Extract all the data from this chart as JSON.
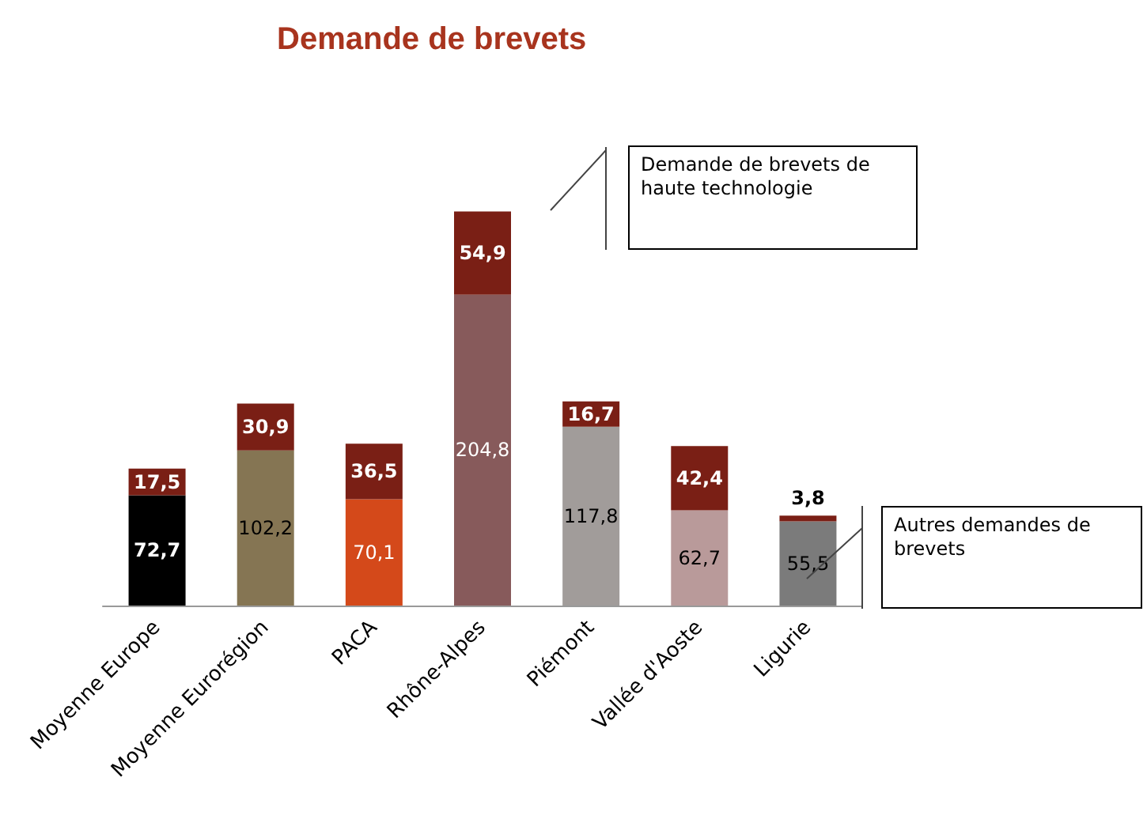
{
  "chart_data": {
    "type": "bar",
    "title": "Demande de brevets",
    "stacked": true,
    "categories": [
      "Moyenne Europe",
      "Moyenne Eurorégion",
      "PACA",
      "Rhône-Alpes",
      "Piémont",
      "Vallée d'Aoste",
      "Ligurie"
    ],
    "series": [
      {
        "colors": [
          "#000000",
          "#857553",
          "#d4491a",
          "#875a5b",
          "#a19c9a",
          "#b99a9a",
          "#7b7b7b"
        ],
        "values": [
          72.7,
          102.2,
          70.1,
          204.8,
          117.8,
          62.7,
          55.5
        ],
        "value_labels": [
          "72,7",
          "102,2",
          "70,1",
          "204,8",
          "117,8",
          "62,7",
          "55,5"
        ]
      },
      {
        "color": "#7a1f15",
        "values": [
          17.5,
          30.9,
          36.5,
          54.9,
          16.7,
          42.4,
          3.8
        ],
        "value_labels": [
          "17,5",
          "30,9",
          "36,5",
          "54,9",
          "16,7",
          "42,4",
          "3,8"
        ]
      }
    ],
    "annotations": [
      "Demande de brevets de haute technologie",
      "Autres demandes de brevets"
    ]
  }
}
